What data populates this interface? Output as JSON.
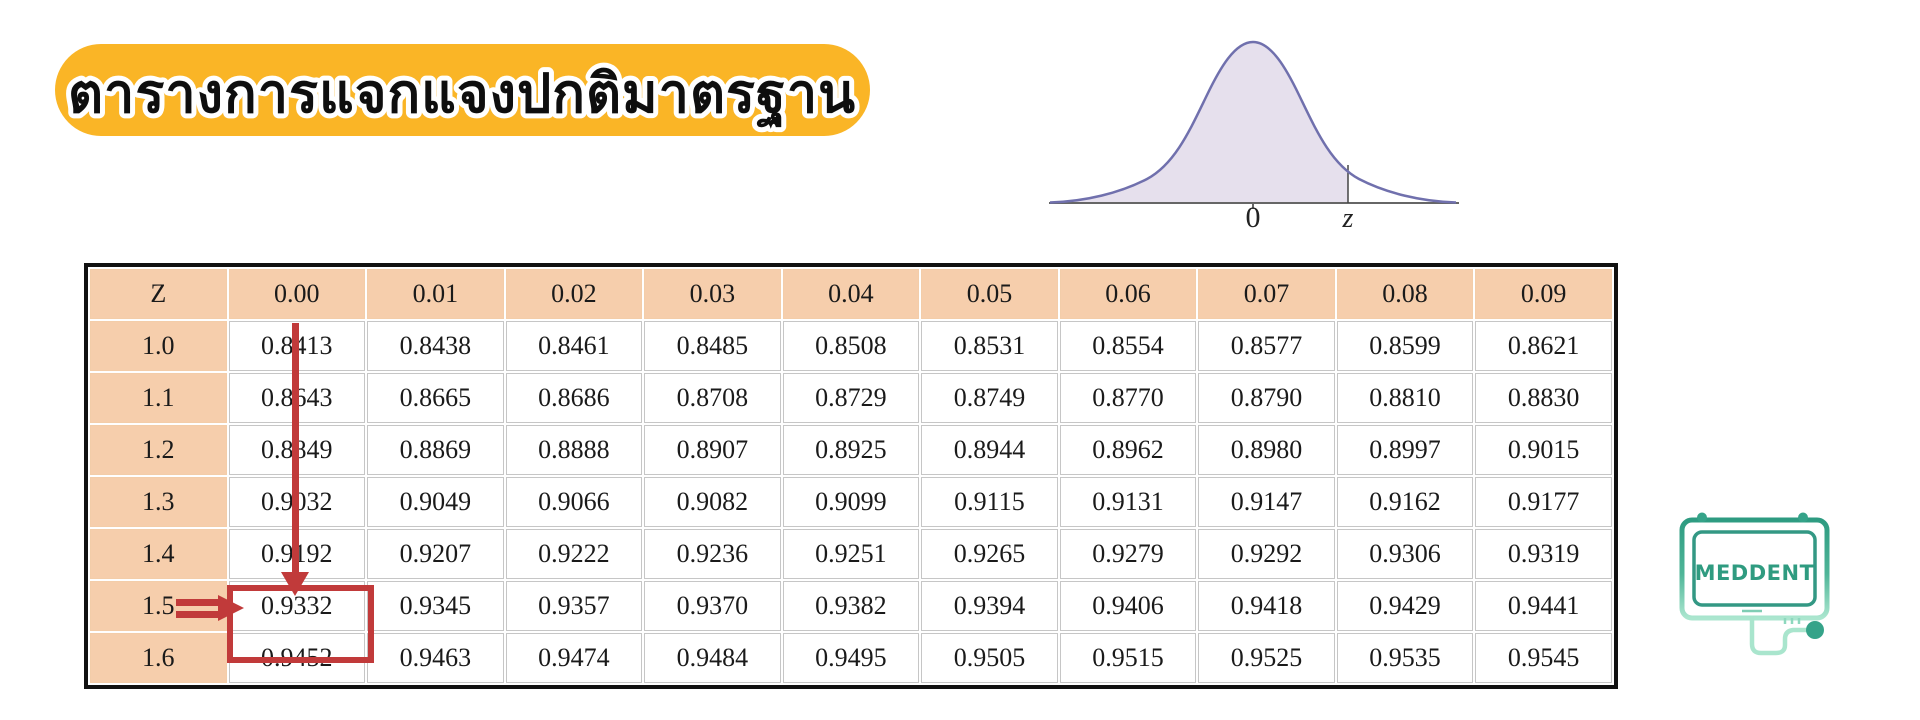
{
  "title": {
    "text": "ตารางการแจกแจงปกติมาตรฐาน"
  },
  "curve": {
    "tick_label": "0",
    "z_label": "z"
  },
  "ztable": {
    "corner_header": "Z",
    "col_headers": [
      "0.00",
      "0.01",
      "0.02",
      "0.03",
      "0.04",
      "0.05",
      "0.06",
      "0.07",
      "0.08",
      "0.09"
    ],
    "rows": [
      {
        "z": "1.0",
        "values": [
          "0.8413",
          "0.8438",
          "0.8461",
          "0.8485",
          "0.8508",
          "0.8531",
          "0.8554",
          "0.8577",
          "0.8599",
          "0.8621"
        ]
      },
      {
        "z": "1.1",
        "values": [
          "0.8643",
          "0.8665",
          "0.8686",
          "0.8708",
          "0.8729",
          "0.8749",
          "0.8770",
          "0.8790",
          "0.8810",
          "0.8830"
        ]
      },
      {
        "z": "1.2",
        "values": [
          "0.8849",
          "0.8869",
          "0.8888",
          "0.8907",
          "0.8925",
          "0.8944",
          "0.8962",
          "0.8980",
          "0.8997",
          "0.9015"
        ]
      },
      {
        "z": "1.3",
        "values": [
          "0.9032",
          "0.9049",
          "0.9066",
          "0.9082",
          "0.9099",
          "0.9115",
          "0.9131",
          "0.9147",
          "0.9162",
          "0.9177"
        ]
      },
      {
        "z": "1.4",
        "values": [
          "0.9192",
          "0.9207",
          "0.9222",
          "0.9236",
          "0.9251",
          "0.9265",
          "0.9279",
          "0.9292",
          "0.9306",
          "0.9319"
        ]
      },
      {
        "z": "1.5",
        "values": [
          "0.9332",
          "0.9345",
          "0.9357",
          "0.9370",
          "0.9382",
          "0.9394",
          "0.9406",
          "0.9418",
          "0.9429",
          "0.9441"
        ]
      },
      {
        "z": "1.6",
        "values": [
          "0.9452",
          "0.9463",
          "0.9474",
          "0.9484",
          "0.9495",
          "0.9505",
          "0.9515",
          "0.9525",
          "0.9535",
          "0.9545"
        ]
      }
    ],
    "highlight": {
      "row": "1.5",
      "column": "0.00",
      "value": "0.9332"
    }
  },
  "logo": {
    "text": "MEDDENT"
  },
  "colors": {
    "accent_red": "#C13A3A",
    "banner_yellow": "#FAB526",
    "table_header_peach": "#F6CEAC",
    "logo_teal": "#35A389",
    "curve_stroke": "#7070AD",
    "curve_fill": "#E6E0ED"
  }
}
